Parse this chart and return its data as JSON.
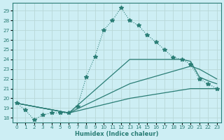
{
  "xlabel": "Humidex (Indice chaleur)",
  "xlim": [
    -0.5,
    23.5
  ],
  "ylim": [
    17.5,
    29.8
  ],
  "yticks": [
    18,
    19,
    20,
    21,
    22,
    23,
    24,
    25,
    26,
    27,
    28,
    29
  ],
  "xticks": [
    0,
    1,
    2,
    3,
    4,
    5,
    6,
    7,
    8,
    9,
    10,
    11,
    12,
    13,
    14,
    15,
    16,
    17,
    18,
    19,
    20,
    21,
    22,
    23
  ],
  "bg_color": "#cdeef4",
  "grid_color": "#b8d8d8",
  "line_color": "#2a7d75",
  "dotted_line": {
    "x": [
      0,
      1,
      2,
      3,
      4,
      5,
      6,
      7,
      8,
      9,
      10,
      11,
      12,
      13,
      14,
      15,
      16,
      17,
      18,
      19,
      20,
      21,
      22,
      23
    ],
    "y": [
      19.5,
      18.8,
      17.8,
      18.3,
      18.5,
      18.5,
      18.5,
      19.2,
      22.2,
      24.3,
      27.0,
      28.0,
      29.3,
      28.0,
      27.5,
      26.5,
      25.8,
      25.0,
      24.2,
      24.0,
      23.5,
      22.0,
      21.5,
      21.0
    ]
  },
  "solid_lines": [
    {
      "x": [
        0,
        6,
        13,
        19,
        20,
        21,
        22,
        23
      ],
      "y": [
        19.5,
        18.5,
        24.0,
        24.0,
        23.8,
        22.2,
        21.8,
        21.5
      ]
    },
    {
      "x": [
        0,
        6,
        13,
        20,
        21,
        22,
        23
      ],
      "y": [
        19.5,
        18.5,
        21.5,
        23.3,
        23.0,
        22.5,
        22.0
      ]
    },
    {
      "x": [
        0,
        6,
        13,
        20,
        21,
        22,
        23
      ],
      "y": [
        19.5,
        18.5,
        20.0,
        21.0,
        21.0,
        21.0,
        21.0
      ]
    }
  ]
}
